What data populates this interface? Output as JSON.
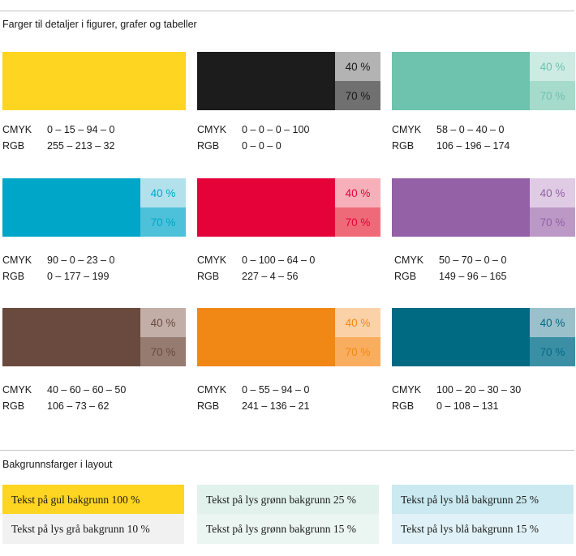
{
  "section_title": "Farger til detaljer i figurer, grafer og tabeller",
  "colors": [
    {
      "main": "#fed520",
      "tint40": null,
      "tint70": null,
      "label40": "",
      "label70": "",
      "tc40": "",
      "tc70": "",
      "cmyk_label": "CMYK",
      "cmyk": "0 – 15 – 94 – 0",
      "rgb_label": "RGB",
      "rgb": "255 – 213 – 32"
    },
    {
      "main": "#1c1c1c",
      "tint40": "#b3b3b3",
      "tint70": "#707070",
      "label40": "40 %",
      "label70": "70 %",
      "tc40": "#1a1a1a",
      "tc70": "#1a1a1a",
      "cmyk_label": "CMYK",
      "cmyk": "0 – 0 – 0 – 100",
      "rgb_label": "RGB",
      "rgb": "0 – 0 – 0"
    },
    {
      "main": "#6dc3ad",
      "tint40": "#cdebe3",
      "tint70": "#a6dacb",
      "label40": "40 %",
      "label70": "70 %",
      "tc40": "#6dc3ad",
      "tc70": "#6dc3ad",
      "cmyk_label": "CMYK",
      "cmyk": "58 – 0 – 40 – 0",
      "rgb_label": "RGB",
      "rgb": "106 – 196 – 174"
    },
    {
      "main": "#00a6c7",
      "tint40": "#b2e1ec",
      "tint70": "#4dc1d9",
      "label40": "40 %",
      "label70": "70 %",
      "tc40": "#00a6c7",
      "tc70": "#00a6c7",
      "cmyk_label": "CMYK",
      "cmyk": "90 – 0 – 23 – 0",
      "rgb_label": "RGB",
      "rgb": "0 – 177 – 199"
    },
    {
      "main": "#e50238",
      "tint40": "#f7b0b9",
      "tint70": "#ef6a79",
      "label40": "40 %",
      "label70": "70 %",
      "tc40": "#e50238",
      "tc70": "#e50238",
      "cmyk_label": "CMYK",
      "cmyk": "0 – 100 – 64 – 0",
      "rgb_label": "RGB",
      "rgb": "227 – 4 – 56"
    },
    {
      "main": "#9460a6",
      "tint40": "#dfcbe4",
      "tint70": "#bb98c6",
      "label40": "40 %",
      "label70": "70 %",
      "tc40": "#9460a6",
      "tc70": "#9460a6",
      "cmyk_label": "CMYK",
      "cmyk": "50 – 70 – 0 – 0",
      "rgb_label": "RGB",
      "rgb": "149 – 96 – 165"
    },
    {
      "main": "#6a4a3e",
      "tint40": "#c2aea7",
      "tint70": "#967b71",
      "label40": "40 %",
      "label70": "70 %",
      "tc40": "#6a4a3e",
      "tc70": "#6a4a3e",
      "cmyk_label": "CMYK",
      "cmyk": "40 – 60 – 60 – 50",
      "rgb_label": "RGB",
      "rgb": "106 – 73 – 62"
    },
    {
      "main": "#f18715",
      "tint40": "#fbd2a8",
      "tint70": "#f9ad5e",
      "label40": "40 %",
      "label70": "70 %",
      "tc40": "#f18715",
      "tc70": "#f18715",
      "cmyk_label": "CMYK",
      "cmyk": "0 – 55 – 94 – 0",
      "rgb_label": "RGB",
      "rgb": "241 – 136 – 21"
    },
    {
      "main": "#006a83",
      "tint40": "#9ac0cc",
      "tint70": "#3a8fa5",
      "label40": "40 %",
      "label70": "70 %",
      "tc40": "#006a83",
      "tc70": "#006a83",
      "cmyk_label": "CMYK",
      "cmyk": "100 – 20 – 30 – 30",
      "rgb_label": "RGB",
      "rgb": "0 – 108 – 131"
    }
  ],
  "background_section_title": "Bakgrunnsfarger i layout",
  "backgrounds": [
    {
      "text": "Tekst på gul bakgrunn 100 %",
      "color": "#fed520"
    },
    {
      "text": "Tekst på lys grønn bakgrunn 25 %",
      "color": "#e1f2ed"
    },
    {
      "text": "Tekst på lys blå bakgrunn 25 %",
      "color": "#cae9f0"
    },
    {
      "text": "Tekst på lys grå bakgrunn 10 %",
      "color": "#f1f1f1"
    },
    {
      "text": "Tekst på lys grønn bakgrunn 15 %",
      "color": "#ebf6f2"
    },
    {
      "text": "Tekst på lys blå bakgrunn 15 %",
      "color": "#e0f2f7"
    }
  ]
}
